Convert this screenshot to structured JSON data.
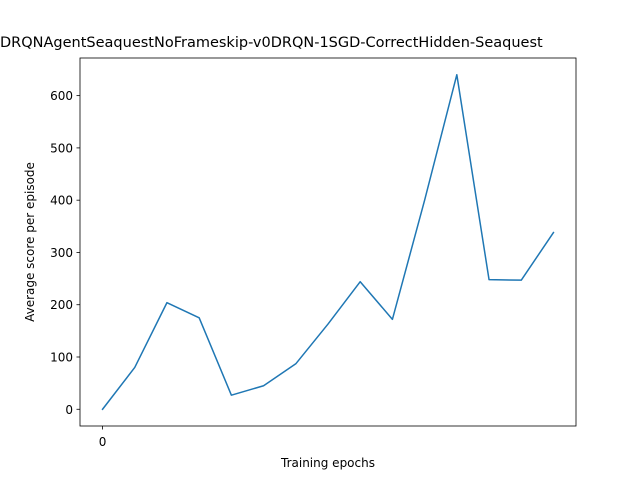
{
  "chart_data": {
    "type": "line",
    "title": "DRQNAgentSeaquestNoFrameskip-v0DRQN-1SGD-CorrectHidden-Seaquest",
    "xlabel": "Training epochs",
    "ylabel": "Average score per episode",
    "xlim": [
      -0.7,
      14.7
    ],
    "ylim": [
      -32,
      672
    ],
    "x_ticks": [
      {
        "value": 0,
        "label": "0"
      }
    ],
    "y_ticks": [
      {
        "value": 0,
        "label": "0"
      },
      {
        "value": 100,
        "label": "100"
      },
      {
        "value": 200,
        "label": "200"
      },
      {
        "value": 300,
        "label": "300"
      },
      {
        "value": 400,
        "label": "400"
      },
      {
        "value": 500,
        "label": "500"
      },
      {
        "value": 600,
        "label": "600"
      }
    ],
    "grid": false,
    "series": [
      {
        "color": "#1f77b4",
        "x": [
          0,
          1,
          2,
          3,
          4,
          5,
          6,
          7,
          8,
          9,
          10,
          11,
          12,
          13,
          14
        ],
        "values": [
          0,
          80,
          204,
          175,
          27,
          45,
          87,
          163,
          244,
          172,
          400,
          640,
          248,
          247,
          338
        ]
      }
    ]
  }
}
